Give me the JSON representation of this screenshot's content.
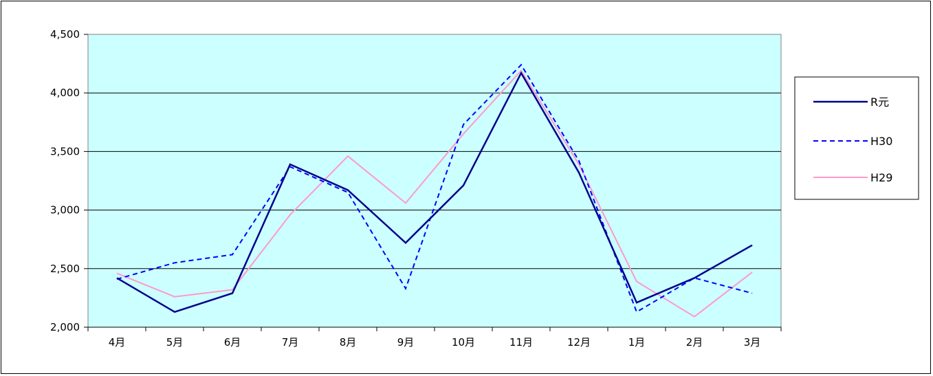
{
  "chart_data": {
    "type": "line",
    "categories": [
      "4月",
      "5月",
      "6月",
      "7月",
      "8月",
      "9月",
      "10月",
      "11月",
      "12月",
      "1月",
      "2月",
      "3月"
    ],
    "series": [
      {
        "name": "R元",
        "values": [
          2420,
          2130,
          2290,
          3390,
          3170,
          2720,
          3210,
          4170,
          3320,
          2210,
          2420,
          2700
        ],
        "color": "#00008b",
        "dash": false
      },
      {
        "name": "H30",
        "values": [
          2410,
          2550,
          2620,
          3370,
          3150,
          2330,
          3730,
          4240,
          3420,
          2130,
          2420,
          2290
        ],
        "color": "#0000ff",
        "dash": true
      },
      {
        "name": "H29",
        "values": [
          2460,
          2260,
          2320,
          2960,
          3460,
          3060,
          3650,
          4190,
          3390,
          2390,
          2090,
          2470
        ],
        "color": "#ff99cc",
        "dash": false
      }
    ],
    "ylim": [
      2000,
      4500
    ],
    "yticks": [
      "2,000",
      "2,500",
      "3,000",
      "3,500",
      "4,000",
      "4,500"
    ],
    "grid": true,
    "legend": "right",
    "plot_background": "#ccffff"
  }
}
